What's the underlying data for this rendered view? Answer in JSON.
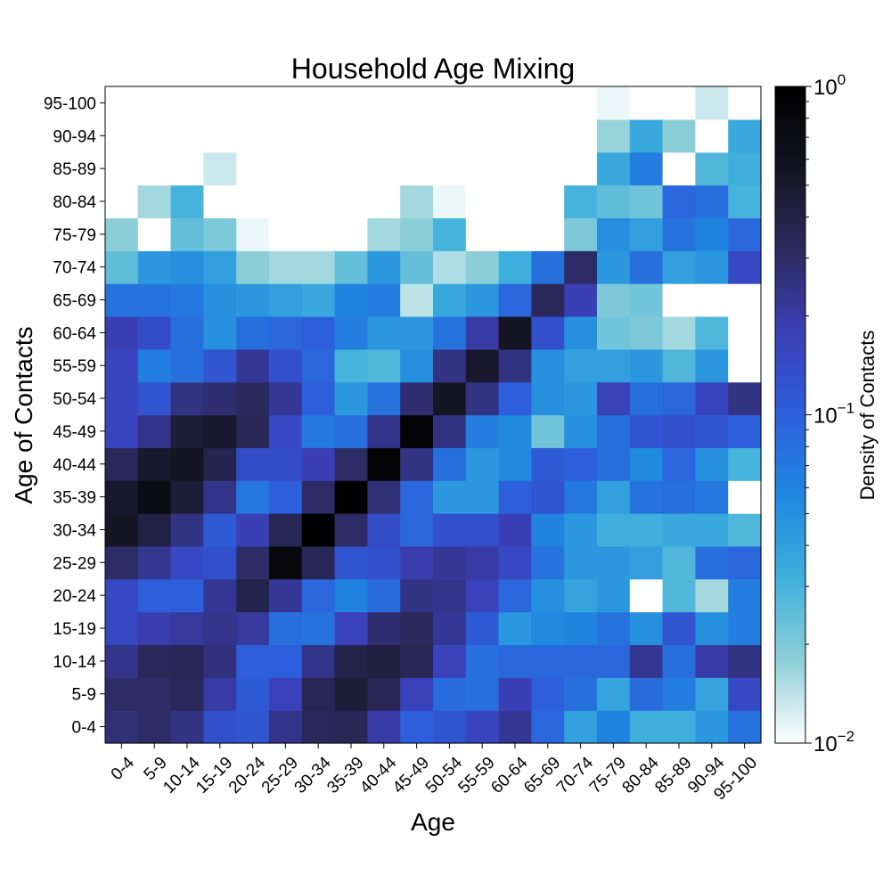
{
  "chart_data": {
    "type": "heatmap",
    "title": "Household Age Mixing",
    "xlabel": "Age",
    "ylabel": "Age of Contacts",
    "categories": [
      "0-4",
      "5-9",
      "10-14",
      "15-19",
      "20-24",
      "25-29",
      "30-34",
      "35-39",
      "40-44",
      "45-49",
      "50-54",
      "55-59",
      "60-64",
      "65-69",
      "70-74",
      "75-79",
      "80-84",
      "85-89",
      "90-94",
      "95-100"
    ],
    "colorbar": {
      "label": "Density of Contacts",
      "scale": "log",
      "range": [
        0.01,
        1
      ],
      "ticks": [
        {
          "base": "10",
          "exp": "0"
        },
        {
          "base": "10",
          "exp": "−1"
        },
        {
          "base": "10",
          "exp": "−2"
        }
      ]
    },
    "colormap": [
      "#ffffff",
      "#8ecfd8",
      "#3fb0dc",
      "#1f88e0",
      "#2d5fdc",
      "#3b3fb8",
      "#2c2a5e",
      "#141422",
      "#000000"
    ],
    "values": [
      [
        0.27,
        0.3,
        0.25,
        0.13,
        0.12,
        0.24,
        0.33,
        0.34,
        0.2,
        0.1,
        0.12,
        0.16,
        0.22,
        0.09,
        0.04,
        0.06,
        0.032,
        0.032,
        0.045,
        0.075
      ],
      [
        0.3,
        0.3,
        0.33,
        0.2,
        0.11,
        0.17,
        0.35,
        0.45,
        0.34,
        0.17,
        0.085,
        0.08,
        0.18,
        0.1,
        0.08,
        0.038,
        0.085,
        0.065,
        0.038,
        0.15
      ],
      [
        0.24,
        0.33,
        0.34,
        0.26,
        0.1,
        0.1,
        0.24,
        0.38,
        0.42,
        0.35,
        0.17,
        0.08,
        0.09,
        0.09,
        0.09,
        0.09,
        0.23,
        0.08,
        0.2,
        0.25
      ],
      [
        0.15,
        0.19,
        0.21,
        0.24,
        0.21,
        0.08,
        0.075,
        0.17,
        0.28,
        0.32,
        0.22,
        0.11,
        0.046,
        0.055,
        0.06,
        0.075,
        0.05,
        0.12,
        0.05,
        0.065
      ],
      [
        0.15,
        0.1,
        0.1,
        0.22,
        0.37,
        0.22,
        0.09,
        0.06,
        0.085,
        0.25,
        0.24,
        0.17,
        0.09,
        0.05,
        0.038,
        0.045,
        0.01,
        0.028,
        0.016,
        0.065
      ],
      [
        0.3,
        0.23,
        0.15,
        0.13,
        0.3,
        0.8,
        0.34,
        0.12,
        0.13,
        0.19,
        0.22,
        0.2,
        0.15,
        0.075,
        0.045,
        0.045,
        0.04,
        0.028,
        0.08,
        0.09
      ],
      [
        0.55,
        0.4,
        0.25,
        0.11,
        0.18,
        0.35,
        1.0,
        0.3,
        0.14,
        0.09,
        0.13,
        0.13,
        0.18,
        0.06,
        0.045,
        0.032,
        0.032,
        0.035,
        0.035,
        0.028
      ],
      [
        0.5,
        0.7,
        0.45,
        0.24,
        0.07,
        0.1,
        0.3,
        0.95,
        0.27,
        0.09,
        0.045,
        0.045,
        0.1,
        0.12,
        0.07,
        0.04,
        0.075,
        0.08,
        0.07,
        0.01
      ],
      [
        0.33,
        0.5,
        0.55,
        0.37,
        0.14,
        0.14,
        0.18,
        0.3,
        0.9,
        0.25,
        0.08,
        0.045,
        0.055,
        0.11,
        0.1,
        0.08,
        0.055,
        0.09,
        0.05,
        0.03
      ],
      [
        0.16,
        0.24,
        0.45,
        0.5,
        0.34,
        0.15,
        0.07,
        0.08,
        0.24,
        0.9,
        0.25,
        0.065,
        0.055,
        0.022,
        0.05,
        0.08,
        0.12,
        0.13,
        0.12,
        0.1
      ],
      [
        0.16,
        0.12,
        0.25,
        0.28,
        0.32,
        0.22,
        0.1,
        0.045,
        0.075,
        0.28,
        0.55,
        0.25,
        0.1,
        0.05,
        0.045,
        0.17,
        0.08,
        0.09,
        0.16,
        0.25
      ],
      [
        0.16,
        0.065,
        0.08,
        0.12,
        0.22,
        0.13,
        0.09,
        0.03,
        0.028,
        0.05,
        0.25,
        0.5,
        0.25,
        0.05,
        0.04,
        0.04,
        0.045,
        0.028,
        0.045,
        0.01
      ],
      [
        0.18,
        0.14,
        0.08,
        0.05,
        0.08,
        0.09,
        0.1,
        0.065,
        0.045,
        0.045,
        0.075,
        0.2,
        0.55,
        0.13,
        0.05,
        0.022,
        0.02,
        0.016,
        0.028,
        0.01
      ],
      [
        0.075,
        0.075,
        0.07,
        0.05,
        0.045,
        0.04,
        0.035,
        0.06,
        0.065,
        0.014,
        0.035,
        0.045,
        0.09,
        0.33,
        0.18,
        0.02,
        0.022,
        0.01,
        0.01,
        0.01
      ],
      [
        0.025,
        0.045,
        0.05,
        0.04,
        0.018,
        0.016,
        0.016,
        0.024,
        0.045,
        0.024,
        0.015,
        0.018,
        0.032,
        0.08,
        0.3,
        0.045,
        0.08,
        0.04,
        0.045,
        0.15
      ],
      [
        0.018,
        0.01,
        0.024,
        0.02,
        0.011,
        0.01,
        0.01,
        0.01,
        0.016,
        0.018,
        0.03,
        0.01,
        0.01,
        0.01,
        0.02,
        0.05,
        0.04,
        0.075,
        0.06,
        0.09
      ],
      [
        0.01,
        0.016,
        0.03,
        0.01,
        0.01,
        0.01,
        0.01,
        0.01,
        0.01,
        0.016,
        0.011,
        0.01,
        0.01,
        0.01,
        0.03,
        0.025,
        0.022,
        0.09,
        0.08,
        0.03
      ],
      [
        0.01,
        0.01,
        0.01,
        0.013,
        0.01,
        0.01,
        0.01,
        0.01,
        0.01,
        0.01,
        0.01,
        0.01,
        0.01,
        0.01,
        0.01,
        0.035,
        0.065,
        0.01,
        0.028,
        0.032
      ],
      [
        0.01,
        0.01,
        0.01,
        0.01,
        0.01,
        0.01,
        0.01,
        0.01,
        0.01,
        0.01,
        0.01,
        0.01,
        0.01,
        0.01,
        0.01,
        0.017,
        0.035,
        0.018,
        0.01,
        0.035
      ],
      [
        0.01,
        0.01,
        0.01,
        0.01,
        0.01,
        0.01,
        0.01,
        0.01,
        0.01,
        0.01,
        0.01,
        0.01,
        0.01,
        0.01,
        0.01,
        0.011,
        0.01,
        0.01,
        0.013,
        0.01
      ]
    ]
  }
}
